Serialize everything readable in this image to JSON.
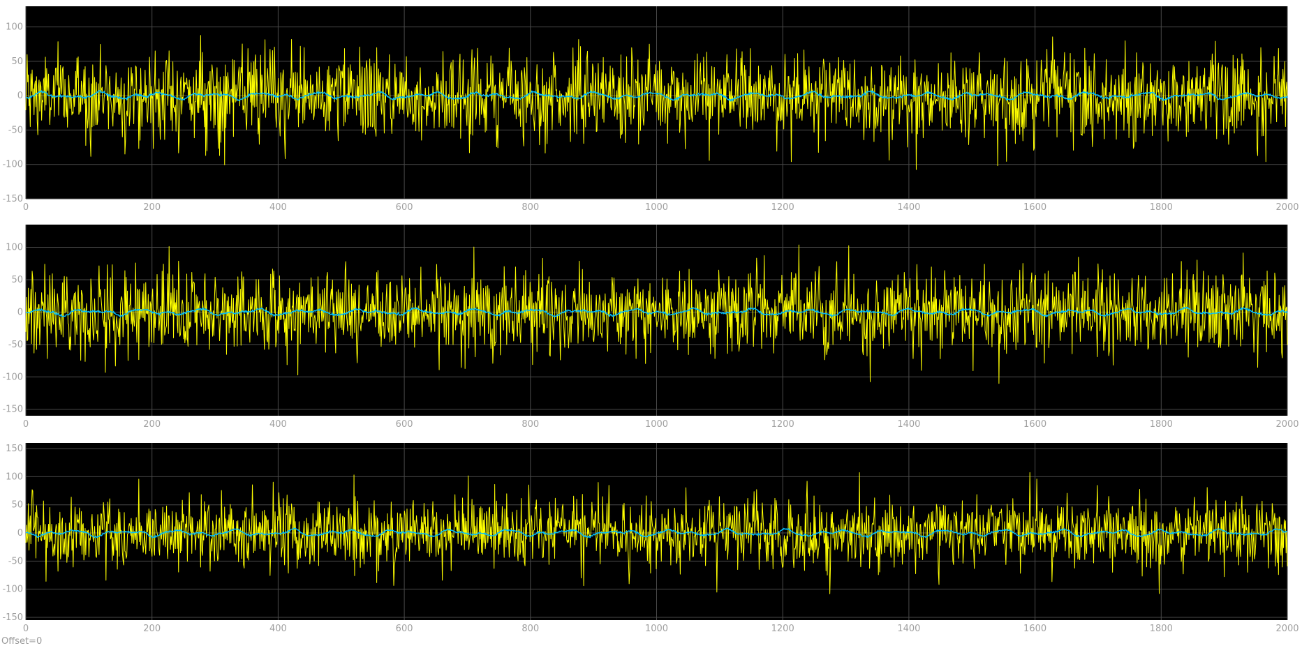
{
  "chart_data": [
    {
      "type": "line",
      "title": "",
      "xlabel": "",
      "ylabel": "",
      "xlim": [
        0,
        2000
      ],
      "ylim": [
        -150,
        130
      ],
      "xticks": [
        "0",
        "200",
        "400",
        "600",
        "800",
        "1000",
        "1200",
        "1400",
        "1600",
        "1800",
        "2000"
      ],
      "xtick_values": [
        0,
        200,
        400,
        600,
        800,
        1000,
        1200,
        1400,
        1600,
        1800,
        2000
      ],
      "yticks": [
        "100",
        "50",
        "0",
        "-50",
        "-100",
        "-150"
      ],
      "ytick_values": [
        100,
        50,
        0,
        -50,
        -100,
        -150
      ],
      "grid": true,
      "background": "#000000",
      "series": [
        {
          "role": "signal",
          "color": "#ffff00",
          "n_samples": 2000,
          "mean": 0,
          "amplitude_range": [
            -125,
            105
          ]
        },
        {
          "role": "smoothed",
          "color": "#00bfff",
          "n_samples": 2000,
          "mean": 0,
          "amplitude_range": [
            -10,
            10
          ]
        }
      ]
    },
    {
      "type": "line",
      "title": "",
      "xlabel": "",
      "ylabel": "",
      "xlim": [
        0,
        2000
      ],
      "ylim": [
        -160,
        135
      ],
      "xticks": [
        "0",
        "200",
        "400",
        "600",
        "800",
        "1000",
        "1200",
        "1400",
        "1600",
        "1800",
        "2000"
      ],
      "xtick_values": [
        0,
        200,
        400,
        600,
        800,
        1000,
        1200,
        1400,
        1600,
        1800,
        2000
      ],
      "yticks": [
        "100",
        "50",
        "0",
        "-50",
        "-100",
        "-150"
      ],
      "ytick_values": [
        100,
        50,
        0,
        -50,
        -100,
        -150
      ],
      "grid": true,
      "background": "#000000",
      "series": [
        {
          "role": "signal",
          "color": "#ffff00",
          "n_samples": 2000,
          "mean": 0,
          "amplitude_range": [
            -133,
            110
          ]
        },
        {
          "role": "smoothed",
          "color": "#00bfff",
          "n_samples": 2000,
          "mean": 0,
          "amplitude_range": [
            -10,
            10
          ]
        }
      ]
    },
    {
      "type": "line",
      "title": "",
      "xlabel": "",
      "ylabel": "",
      "xlim": [
        0,
        2000
      ],
      "ylim": [
        -155,
        160
      ],
      "xticks": [
        "0",
        "200",
        "400",
        "600",
        "800",
        "1000",
        "1200",
        "1400",
        "1600",
        "1800",
        "2000"
      ],
      "xtick_values": [
        0,
        200,
        400,
        600,
        800,
        1000,
        1200,
        1400,
        1600,
        1800,
        2000
      ],
      "yticks": [
        "150",
        "100",
        "50",
        "0",
        "-50",
        "-100",
        "-150"
      ],
      "ytick_values": [
        150,
        100,
        50,
        0,
        -50,
        -100,
        -150
      ],
      "grid": true,
      "background": "#000000",
      "series": [
        {
          "role": "signal",
          "color": "#ffff00",
          "n_samples": 2000,
          "mean": 0,
          "amplitude_range": [
            -125,
            128
          ]
        },
        {
          "role": "smoothed",
          "color": "#00bfff",
          "n_samples": 2000,
          "mean": 0,
          "amplitude_range": [
            -10,
            12
          ]
        }
      ]
    }
  ],
  "footer": {
    "offset_label": "Offset=0"
  },
  "colors": {
    "plot_background": "#000000",
    "grid": "#4a4a4a",
    "tick_text": "#a0a0a0",
    "page_background": "#ffffff"
  }
}
